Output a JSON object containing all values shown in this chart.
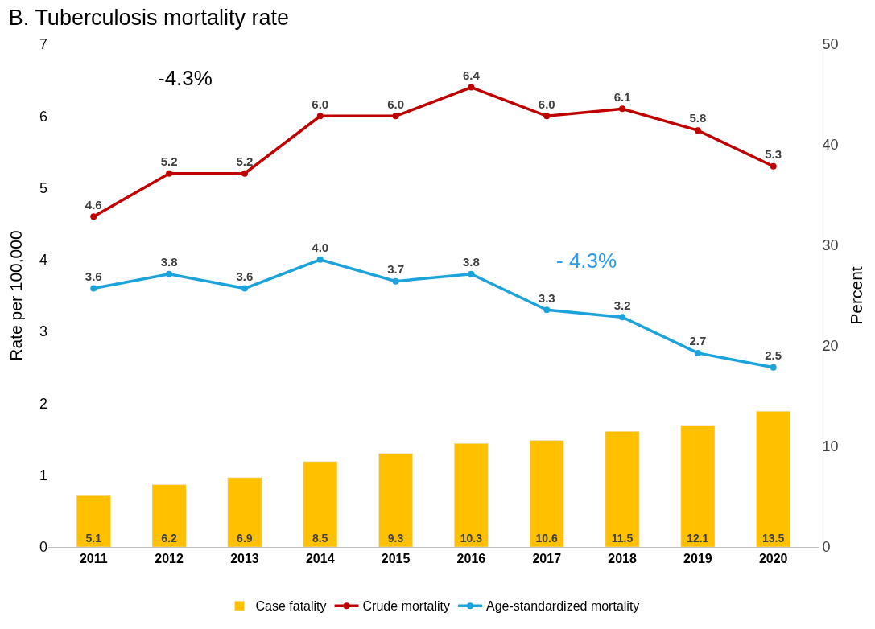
{
  "chart_data": {
    "type": "line",
    "title": "B. Tuberculosis mortality rate",
    "ylabel": "Rate per 100,000",
    "y2label": "Percent",
    "categories": [
      "2011",
      "2012",
      "2013",
      "2014",
      "2015",
      "2016",
      "2017",
      "2018",
      "2019",
      "2020"
    ],
    "series": [
      {
        "name": "Case fatality",
        "type": "bar",
        "axis": "y2",
        "color": "#ffc000",
        "values": [
          5.1,
          6.2,
          6.9,
          8.5,
          9.3,
          10.3,
          10.6,
          11.5,
          12.1,
          13.5
        ],
        "value_labels": [
          "5.1",
          "6.2",
          "6.9",
          "8.5",
          "9.3",
          "10.3",
          "10.6",
          "11.5",
          "12.1",
          "13.5"
        ]
      },
      {
        "name": "Crude mortality",
        "color": "#c00000",
        "values": [
          4.6,
          5.2,
          5.2,
          6.0,
          6.0,
          6.4,
          6.0,
          6.1,
          5.8,
          5.3
        ],
        "value_labels": [
          "4.6",
          "5.2",
          "5.2",
          "6.0",
          "6.0",
          "6.4",
          "6.0",
          "6.1",
          "5.8",
          "5.3"
        ]
      },
      {
        "name": "Age-standardized mortality",
        "color": "#1ca3dc",
        "values": [
          3.6,
          3.8,
          3.6,
          4.0,
          3.7,
          3.8,
          3.3,
          3.2,
          2.7,
          2.5
        ],
        "value_labels": [
          "3.6",
          "3.8",
          "3.6",
          "4.0",
          "3.7",
          "3.8",
          "3.3",
          "3.2",
          "2.7",
          "2.5"
        ]
      }
    ],
    "ylim": [
      0,
      7
    ],
    "yticks": [
      0,
      1,
      2,
      3,
      4,
      5,
      6,
      7
    ],
    "y2lim": [
      0,
      50
    ],
    "y2ticks": [
      0,
      10,
      20,
      30,
      40,
      50
    ],
    "marker": "circle",
    "line_style": "solid",
    "legend": "bottom",
    "annotations": [
      "-4.3%",
      "- 4.3%"
    ]
  }
}
